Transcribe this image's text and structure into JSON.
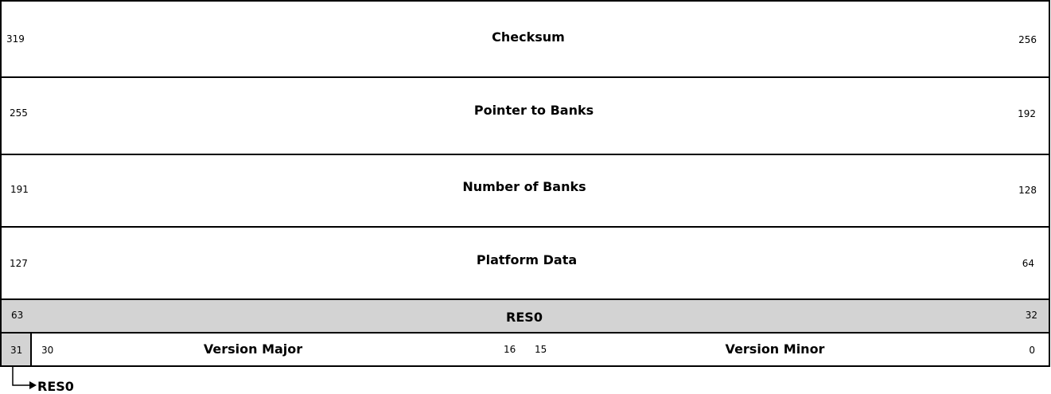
{
  "rows": [
    {
      "name": "Checksum",
      "msb": "319",
      "lsb": "256"
    },
    {
      "name": "Pointer to Banks",
      "msb": "255",
      "lsb": "192"
    },
    {
      "name": "Number of Banks",
      "msb": "191",
      "lsb": "128"
    },
    {
      "name": "Platform Data",
      "msb": "127",
      "lsb": "64"
    },
    {
      "name": "RES0",
      "msb": "63",
      "lsb": "32"
    }
  ],
  "version_row": {
    "reserved_bit": "31",
    "major": {
      "name": "Version Major",
      "msb": "30",
      "lsb": "16"
    },
    "minor": {
      "name": "Version Minor",
      "msb": "15",
      "lsb": "0"
    }
  },
  "callout": {
    "label": "RES0"
  },
  "colors": {
    "reserved_fill": "#d3d3d3",
    "field_fill": "#ffffff",
    "border": "#000000"
  }
}
